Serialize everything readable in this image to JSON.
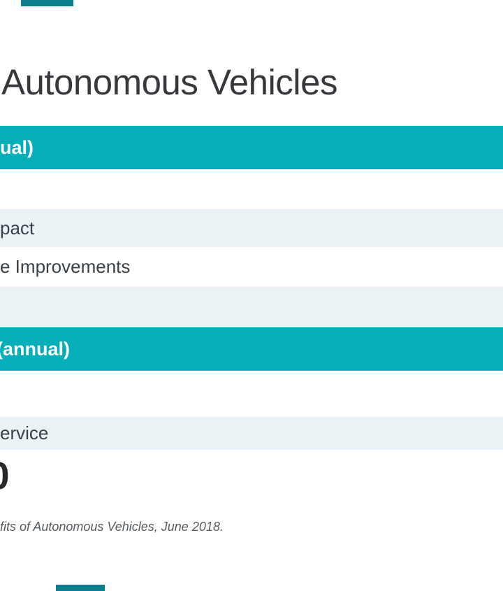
{
  "title": {
    "text": "Autonomous Vehicles"
  },
  "table": {
    "sections": [
      {
        "header_fragment": "ual)",
        "rows": [
          {
            "label": ""
          },
          {
            "label": "pact"
          },
          {
            "label": "e Improvements"
          },
          {
            "label": ""
          }
        ]
      },
      {
        "header_fragment": "(annual)",
        "rows": [
          {
            "label": ""
          },
          {
            "label": "ervice"
          }
        ]
      }
    ],
    "big_value_fragment": "0"
  },
  "citation": "fits of Autonomous Vehicles, June 2018.",
  "colors": {
    "teal_band": "#06AEBA",
    "row_tint": "#EAF2F6",
    "edge_strip": "#0C7F8D",
    "title_text": "#35383D",
    "row_text": "#3A4148",
    "band_text": "#FFFFFF",
    "citation_text": "#565C61",
    "big_digit": "#26292E"
  }
}
